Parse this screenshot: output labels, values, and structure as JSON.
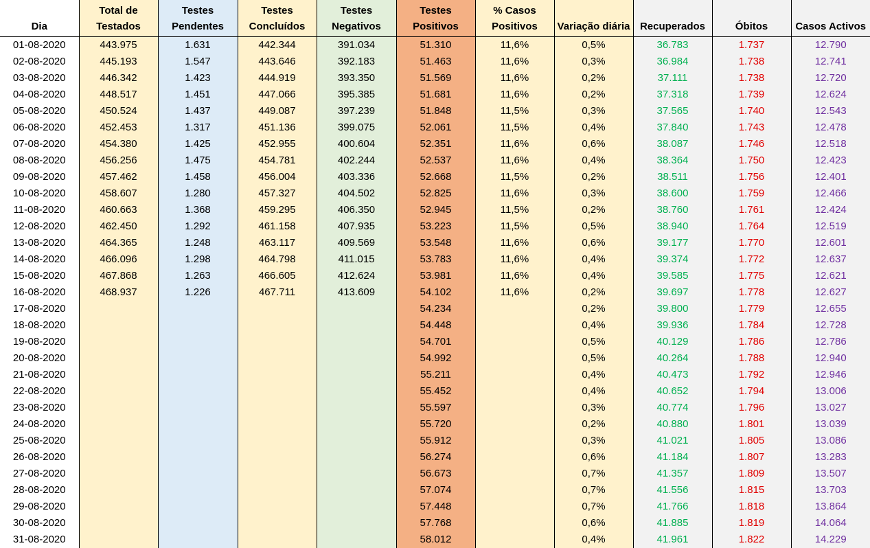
{
  "table": {
    "header": [
      "Dia",
      "Total de Testados",
      "Testes Pendentes",
      "Testes Concluídos",
      "Testes Negativos",
      "Testes Positivos",
      "% Casos Positivos",
      "Variação diária",
      "Recuperados",
      "Óbitos",
      "Casos Activos"
    ],
    "rows": [
      [
        "01-08-2020",
        "443.975",
        "1.631",
        "442.344",
        "391.034",
        "51.310",
        "11,6%",
        "0,5%",
        "36.783",
        "1.737",
        "12.790"
      ],
      [
        "02-08-2020",
        "445.193",
        "1.547",
        "443.646",
        "392.183",
        "51.463",
        "11,6%",
        "0,3%",
        "36.984",
        "1.738",
        "12.741"
      ],
      [
        "03-08-2020",
        "446.342",
        "1.423",
        "444.919",
        "393.350",
        "51.569",
        "11,6%",
        "0,2%",
        "37.111",
        "1.738",
        "12.720"
      ],
      [
        "04-08-2020",
        "448.517",
        "1.451",
        "447.066",
        "395.385",
        "51.681",
        "11,6%",
        "0,2%",
        "37.318",
        "1.739",
        "12.624"
      ],
      [
        "05-08-2020",
        "450.524",
        "1.437",
        "449.087",
        "397.239",
        "51.848",
        "11,5%",
        "0,3%",
        "37.565",
        "1.740",
        "12.543"
      ],
      [
        "06-08-2020",
        "452.453",
        "1.317",
        "451.136",
        "399.075",
        "52.061",
        "11,5%",
        "0,4%",
        "37.840",
        "1.743",
        "12.478"
      ],
      [
        "07-08-2020",
        "454.380",
        "1.425",
        "452.955",
        "400.604",
        "52.351",
        "11,6%",
        "0,6%",
        "38.087",
        "1.746",
        "12.518"
      ],
      [
        "08-08-2020",
        "456.256",
        "1.475",
        "454.781",
        "402.244",
        "52.537",
        "11,6%",
        "0,4%",
        "38.364",
        "1.750",
        "12.423"
      ],
      [
        "09-08-2020",
        "457.462",
        "1.458",
        "456.004",
        "403.336",
        "52.668",
        "11,5%",
        "0,2%",
        "38.511",
        "1.756",
        "12.401"
      ],
      [
        "10-08-2020",
        "458.607",
        "1.280",
        "457.327",
        "404.502",
        "52.825",
        "11,6%",
        "0,3%",
        "38.600",
        "1.759",
        "12.466"
      ],
      [
        "11-08-2020",
        "460.663",
        "1.368",
        "459.295",
        "406.350",
        "52.945",
        "11,5%",
        "0,2%",
        "38.760",
        "1.761",
        "12.424"
      ],
      [
        "12-08-2020",
        "462.450",
        "1.292",
        "461.158",
        "407.935",
        "53.223",
        "11,5%",
        "0,5%",
        "38.940",
        "1.764",
        "12.519"
      ],
      [
        "13-08-2020",
        "464.365",
        "1.248",
        "463.117",
        "409.569",
        "53.548",
        "11,6%",
        "0,6%",
        "39.177",
        "1.770",
        "12.601"
      ],
      [
        "14-08-2020",
        "466.096",
        "1.298",
        "464.798",
        "411.015",
        "53.783",
        "11,6%",
        "0,4%",
        "39.374",
        "1.772",
        "12.637"
      ],
      [
        "15-08-2020",
        "467.868",
        "1.263",
        "466.605",
        "412.624",
        "53.981",
        "11,6%",
        "0,4%",
        "39.585",
        "1.775",
        "12.621"
      ],
      [
        "16-08-2020",
        "468.937",
        "1.226",
        "467.711",
        "413.609",
        "54.102",
        "11,6%",
        "0,2%",
        "39.697",
        "1.778",
        "12.627"
      ],
      [
        "17-08-2020",
        null,
        null,
        null,
        null,
        "54.234",
        null,
        "0,2%",
        "39.800",
        "1.779",
        "12.655"
      ],
      [
        "18-08-2020",
        null,
        null,
        null,
        null,
        "54.448",
        null,
        "0,4%",
        "39.936",
        "1.784",
        "12.728"
      ],
      [
        "19-08-2020",
        null,
        null,
        null,
        null,
        "54.701",
        null,
        "0,5%",
        "40.129",
        "1.786",
        "12.786"
      ],
      [
        "20-08-2020",
        null,
        null,
        null,
        null,
        "54.992",
        null,
        "0,5%",
        "40.264",
        "1.788",
        "12.940"
      ],
      [
        "21-08-2020",
        null,
        null,
        null,
        null,
        "55.211",
        null,
        "0,4%",
        "40.473",
        "1.792",
        "12.946"
      ],
      [
        "22-08-2020",
        null,
        null,
        null,
        null,
        "55.452",
        null,
        "0,4%",
        "40.652",
        "1.794",
        "13.006"
      ],
      [
        "23-08-2020",
        null,
        null,
        null,
        null,
        "55.597",
        null,
        "0,3%",
        "40.774",
        "1.796",
        "13.027"
      ],
      [
        "24-08-2020",
        null,
        null,
        null,
        null,
        "55.720",
        null,
        "0,2%",
        "40.880",
        "1.801",
        "13.039"
      ],
      [
        "25-08-2020",
        null,
        null,
        null,
        null,
        "55.912",
        null,
        "0,3%",
        "41.021",
        "1.805",
        "13.086"
      ],
      [
        "26-08-2020",
        null,
        null,
        null,
        null,
        "56.274",
        null,
        "0,6%",
        "41.184",
        "1.807",
        "13.283"
      ],
      [
        "27-08-2020",
        null,
        null,
        null,
        null,
        "56.673",
        null,
        "0,7%",
        "41.357",
        "1.809",
        "13.507"
      ],
      [
        "28-08-2020",
        null,
        null,
        null,
        null,
        "57.074",
        null,
        "0,7%",
        "41.556",
        "1.815",
        "13.703"
      ],
      [
        "29-08-2020",
        null,
        null,
        null,
        null,
        "57.448",
        null,
        "0,7%",
        "41.766",
        "1.818",
        "13.864"
      ],
      [
        "30-08-2020",
        null,
        null,
        null,
        null,
        "57.768",
        null,
        "0,6%",
        "41.885",
        "1.819",
        "14.064"
      ],
      [
        "31-08-2020",
        null,
        null,
        null,
        null,
        "58.012",
        null,
        "0,4%",
        "41.961",
        "1.822",
        "14.229"
      ]
    ]
  }
}
